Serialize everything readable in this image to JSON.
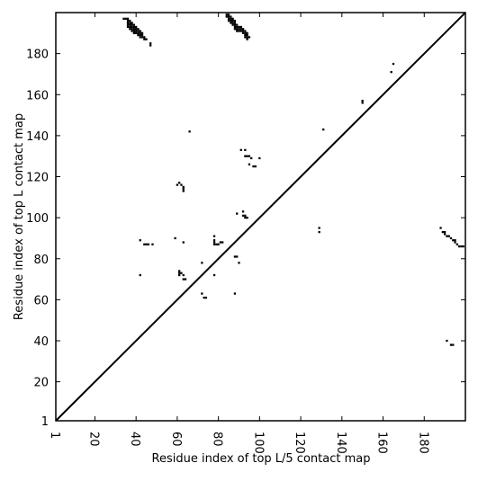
{
  "chart_data": {
    "type": "scatter",
    "marker": "square",
    "color": "#000000",
    "xlabel": "Residue index of top L/5 contact map",
    "ylabel": "Residue index of top L contact map",
    "xlim": [
      1,
      200
    ],
    "ylim": [
      1,
      200
    ],
    "xticks": [
      1,
      20,
      40,
      60,
      80,
      100,
      120,
      140,
      160,
      180
    ],
    "yticks": [
      1,
      20,
      40,
      60,
      80,
      100,
      120,
      140,
      160,
      180
    ],
    "diagonal": true,
    "x": [
      34,
      35,
      36,
      36,
      36,
      36,
      36,
      37,
      37,
      37,
      37,
      37,
      38,
      38,
      38,
      38,
      38,
      39,
      39,
      39,
      39,
      39,
      40,
      40,
      40,
      40,
      41,
      41,
      41,
      41,
      42,
      42,
      42,
      42,
      43,
      43,
      43,
      44,
      44,
      45,
      47,
      47,
      84,
      84,
      85,
      85,
      85,
      85,
      86,
      86,
      86,
      86,
      87,
      87,
      87,
      87,
      88,
      88,
      88,
      88,
      88,
      89,
      89,
      89,
      89,
      90,
      90,
      90,
      91,
      91,
      91,
      92,
      92,
      92,
      93,
      93,
      93,
      93,
      94,
      94,
      94,
      94,
      95,
      66,
      131,
      150,
      150,
      165,
      164,
      91,
      93,
      93,
      94,
      95,
      96,
      95,
      97,
      98,
      100,
      60,
      61,
      62,
      63,
      63,
      63,
      89,
      92,
      92,
      93,
      93,
      94,
      129,
      129,
      59,
      42,
      44,
      45,
      46,
      48,
      63,
      78,
      78,
      78,
      78,
      79,
      80,
      81,
      82,
      88,
      89,
      90,
      72,
      42,
      78,
      61,
      61,
      61,
      62,
      63,
      63,
      64,
      72,
      73,
      74,
      88,
      188,
      189,
      190,
      190,
      191,
      192,
      193,
      194,
      195,
      195,
      196,
      197,
      198,
      199,
      191,
      193,
      194
    ],
    "y": [
      197,
      197,
      193,
      194,
      195,
      196,
      197,
      192,
      193,
      194,
      195,
      196,
      191,
      192,
      193,
      194,
      195,
      190,
      191,
      192,
      193,
      194,
      190,
      191,
      192,
      193,
      189,
      190,
      191,
      192,
      188,
      189,
      190,
      191,
      188,
      189,
      190,
      187,
      188,
      187,
      184,
      185,
      198,
      199,
      196,
      197,
      198,
      199,
      195,
      196,
      197,
      198,
      194,
      195,
      196,
      197,
      192,
      193,
      194,
      195,
      196,
      191,
      192,
      193,
      194,
      191,
      192,
      193,
      191,
      192,
      193,
      190,
      191,
      192,
      188,
      189,
      190,
      191,
      187,
      188,
      189,
      190,
      188,
      142,
      143,
      157,
      156,
      175,
      171,
      133,
      133,
      130,
      130,
      130,
      129,
      126,
      125,
      125,
      129,
      116,
      117,
      116,
      115,
      114,
      113,
      102,
      103,
      101,
      101,
      100,
      100,
      95,
      93,
      90,
      89,
      87,
      87,
      87,
      87,
      88,
      91,
      89,
      88,
      87,
      87,
      87,
      88,
      88,
      81,
      81,
      78,
      78,
      72,
      72,
      74,
      73,
      72,
      73,
      72,
      70,
      70,
      63,
      61,
      61,
      63,
      95,
      93,
      93,
      92,
      91,
      91,
      90,
      89,
      89,
      88,
      87,
      86,
      86,
      86,
      40,
      38,
      38
    ]
  }
}
